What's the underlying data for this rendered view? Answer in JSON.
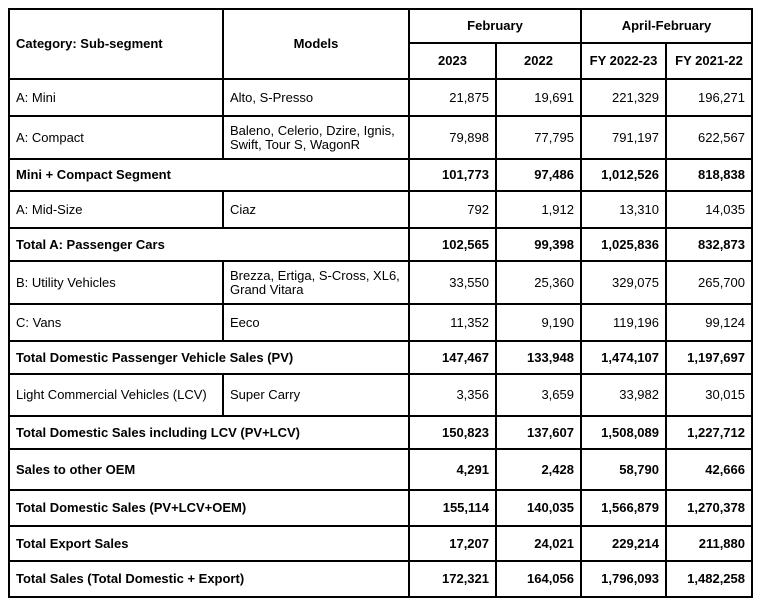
{
  "colors": {
    "border": "#000000",
    "text": "#000000",
    "background": "#ffffff"
  },
  "table": {
    "columns": {
      "category": "Category: Sub-segment",
      "models": "Models",
      "groups": [
        {
          "label": "February",
          "sub": [
            "2023",
            "2022"
          ]
        },
        {
          "label": "April-February",
          "sub": [
            "FY 2022-23",
            "FY 2021-22"
          ]
        }
      ],
      "value_keys": [
        "feb-2023",
        "feb-2022",
        "fy-2022-23",
        "fy-2021-22"
      ]
    },
    "rows": [
      {
        "is_total": false,
        "category": "A: Mini",
        "models": "Alto, S-Presso",
        "values": [
          "21,875",
          "19,691",
          "221,329",
          "196,271"
        ]
      },
      {
        "is_total": false,
        "category": "A: Compact",
        "models": "Baleno, Celerio, Dzire, Ignis, Swift, Tour S, WagonR",
        "values": [
          "79,898",
          "77,795",
          "791,197",
          "622,567"
        ]
      },
      {
        "is_total": true,
        "category": "Mini + Compact Segment",
        "models": null,
        "values": [
          "101,773",
          "97,486",
          "1,012,526",
          "818,838"
        ]
      },
      {
        "is_total": false,
        "category": "A: Mid-Size",
        "models": "Ciaz",
        "values": [
          "792",
          "1,912",
          "13,310",
          "14,035"
        ]
      },
      {
        "is_total": true,
        "category": "Total A: Passenger Cars",
        "models": null,
        "values": [
          "102,565",
          "99,398",
          "1,025,836",
          "832,873"
        ]
      },
      {
        "is_total": false,
        "category": "B: Utility Vehicles",
        "models": "Brezza, Ertiga, S-Cross, XL6, Grand Vitara",
        "values": [
          "33,550",
          "25,360",
          "329,075",
          "265,700"
        ]
      },
      {
        "is_total": false,
        "category": "C: Vans",
        "models": "Eeco",
        "values": [
          "11,352",
          "9,190",
          "119,196",
          "99,124"
        ]
      },
      {
        "is_total": true,
        "category": "Total Domestic Passenger Vehicle Sales (PV)",
        "models": null,
        "values": [
          "147,467",
          "133,948",
          "1,474,107",
          "1,197,697"
        ]
      },
      {
        "is_total": false,
        "category": "Light Commercial Vehicles (LCV)",
        "models": "Super Carry",
        "values": [
          "3,356",
          "3,659",
          "33,982",
          "30,015"
        ]
      },
      {
        "is_total": true,
        "category": "Total Domestic Sales including LCV (PV+LCV)",
        "models": null,
        "values": [
          "150,823",
          "137,607",
          "1,508,089",
          "1,227,712"
        ]
      },
      {
        "is_total": true,
        "category": "Sales to other OEM",
        "models": null,
        "values": [
          "4,291",
          "2,428",
          "58,790",
          "42,666"
        ]
      },
      {
        "is_total": true,
        "category": "Total Domestic Sales (PV+LCV+OEM)",
        "models": null,
        "values": [
          "155,114",
          "140,035",
          "1,566,879",
          "1,270,378"
        ]
      },
      {
        "is_total": true,
        "category": "Total Export Sales",
        "models": null,
        "values": [
          "17,207",
          "24,021",
          "229,214",
          "211,880"
        ]
      },
      {
        "is_total": true,
        "category": "Total Sales (Total Domestic + Export)",
        "models": null,
        "values": [
          "172,321",
          "164,056",
          "1,796,093",
          "1,482,258"
        ]
      }
    ]
  }
}
